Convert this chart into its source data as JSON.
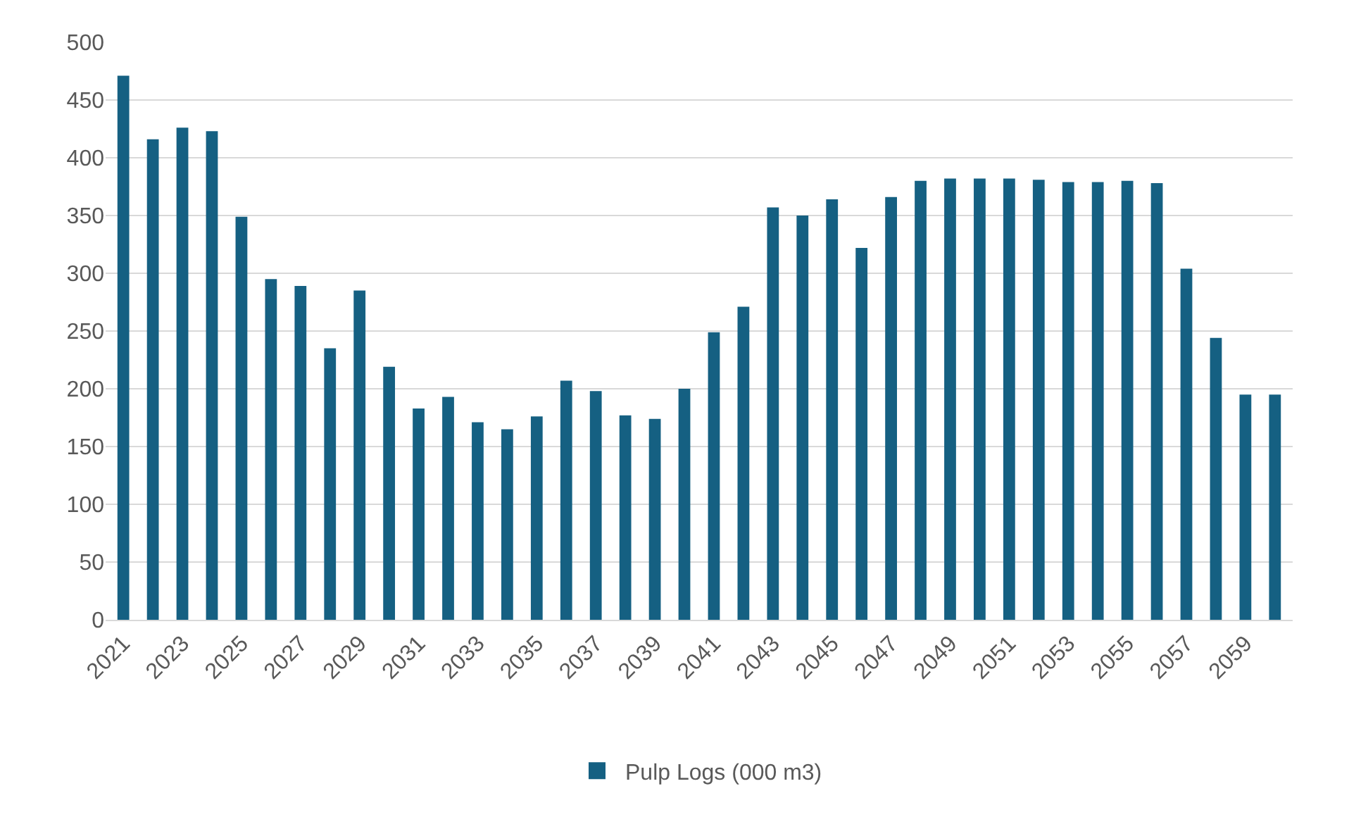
{
  "chart_data": {
    "type": "bar",
    "categories": [
      "2021",
      null,
      "2023",
      null,
      "2025",
      null,
      "2027",
      null,
      "2029",
      null,
      "2031",
      null,
      "2033",
      null,
      "2035",
      null,
      "2037",
      null,
      "2039",
      null,
      "2041",
      null,
      "2043",
      null,
      "2045",
      null,
      "2047",
      null,
      "2049",
      null,
      "2051",
      null,
      "2053",
      null,
      "2055",
      null,
      "2057",
      null,
      "2059",
      null
    ],
    "series": [
      {
        "name": "Pulp Logs (000 m3)",
        "color": "#156082",
        "values": [
          471,
          416,
          426,
          423,
          349,
          295,
          289,
          235,
          285,
          219,
          183,
          193,
          171,
          165,
          176,
          207,
          198,
          177,
          174,
          200,
          249,
          271,
          357,
          350,
          364,
          322,
          366,
          380,
          382,
          382,
          382,
          381,
          379,
          379,
          380,
          378,
          304,
          244,
          195,
          195
        ]
      }
    ],
    "ylim": [
      0,
      500
    ],
    "yticks": [
      0,
      50,
      100,
      150,
      200,
      250,
      300,
      350,
      400,
      450,
      500
    ],
    "grid": "y",
    "legend": "bottom"
  }
}
